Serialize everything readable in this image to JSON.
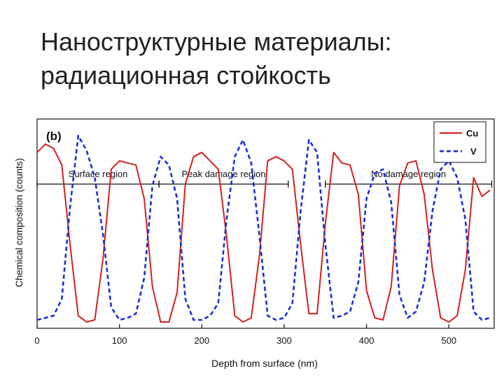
{
  "slide": {
    "title_line1": "Наноструктурные материалы:",
    "title_line2": "радиационная стойкость"
  },
  "chart_data": {
    "type": "line",
    "panel_label": "(b)",
    "xlabel": "Depth from surface (nm)",
    "ylabel": "Chemical composition (counts)",
    "xlim": [
      0,
      555
    ],
    "ylim": [
      0,
      1
    ],
    "x_ticks": [
      0,
      100,
      200,
      300,
      400,
      500
    ],
    "grid": false,
    "legend": {
      "placement": "top-right"
    },
    "regions": [
      {
        "label": "Surface region",
        "x_start": 0,
        "x_end": 148
      },
      {
        "label": "Peak damage region",
        "x_start": 148,
        "x_end": 305
      },
      {
        "label": "No damage region",
        "x_start": 350,
        "x_end": 552
      }
    ],
    "series": [
      {
        "name": "Cu",
        "color": "#d42020",
        "style": "solid",
        "x": [
          0,
          10,
          20,
          30,
          40,
          50,
          60,
          70,
          80,
          90,
          100,
          110,
          120,
          130,
          140,
          150,
          160,
          170,
          180,
          190,
          200,
          210,
          220,
          230,
          240,
          250,
          260,
          270,
          280,
          290,
          300,
          310,
          320,
          330,
          340,
          350,
          360,
          370,
          380,
          390,
          400,
          410,
          420,
          430,
          440,
          450,
          460,
          470,
          480,
          490,
          500,
          510,
          520,
          530,
          540,
          550
        ],
        "values": [
          0.84,
          0.88,
          0.86,
          0.78,
          0.4,
          0.06,
          0.03,
          0.04,
          0.33,
          0.76,
          0.8,
          0.79,
          0.78,
          0.62,
          0.2,
          0.03,
          0.03,
          0.17,
          0.69,
          0.82,
          0.84,
          0.8,
          0.76,
          0.44,
          0.06,
          0.03,
          0.05,
          0.35,
          0.8,
          0.82,
          0.8,
          0.76,
          0.4,
          0.07,
          0.07,
          0.5,
          0.84,
          0.79,
          0.78,
          0.64,
          0.18,
          0.05,
          0.04,
          0.2,
          0.68,
          0.79,
          0.8,
          0.64,
          0.28,
          0.05,
          0.03,
          0.06,
          0.28,
          0.72,
          0.63,
          0.66
        ]
      },
      {
        "name": "V",
        "color": "#1a2fd6",
        "style": "dashed",
        "x": [
          0,
          10,
          20,
          30,
          40,
          50,
          60,
          70,
          80,
          90,
          100,
          110,
          120,
          130,
          140,
          150,
          160,
          170,
          180,
          190,
          200,
          210,
          220,
          230,
          240,
          250,
          260,
          270,
          280,
          290,
          300,
          310,
          320,
          330,
          340,
          350,
          360,
          370,
          380,
          390,
          400,
          410,
          420,
          430,
          440,
          450,
          460,
          470,
          480,
          490,
          500,
          510,
          520,
          530,
          540,
          550
        ],
        "values": [
          0.04,
          0.05,
          0.06,
          0.14,
          0.58,
          0.92,
          0.85,
          0.72,
          0.45,
          0.1,
          0.04,
          0.05,
          0.07,
          0.24,
          0.68,
          0.82,
          0.78,
          0.62,
          0.14,
          0.04,
          0.04,
          0.06,
          0.12,
          0.52,
          0.82,
          0.9,
          0.79,
          0.44,
          0.06,
          0.04,
          0.05,
          0.12,
          0.56,
          0.9,
          0.84,
          0.4,
          0.05,
          0.06,
          0.08,
          0.22,
          0.62,
          0.74,
          0.76,
          0.6,
          0.16,
          0.05,
          0.08,
          0.22,
          0.56,
          0.76,
          0.8,
          0.72,
          0.52,
          0.08,
          0.04,
          0.05
        ]
      }
    ]
  }
}
